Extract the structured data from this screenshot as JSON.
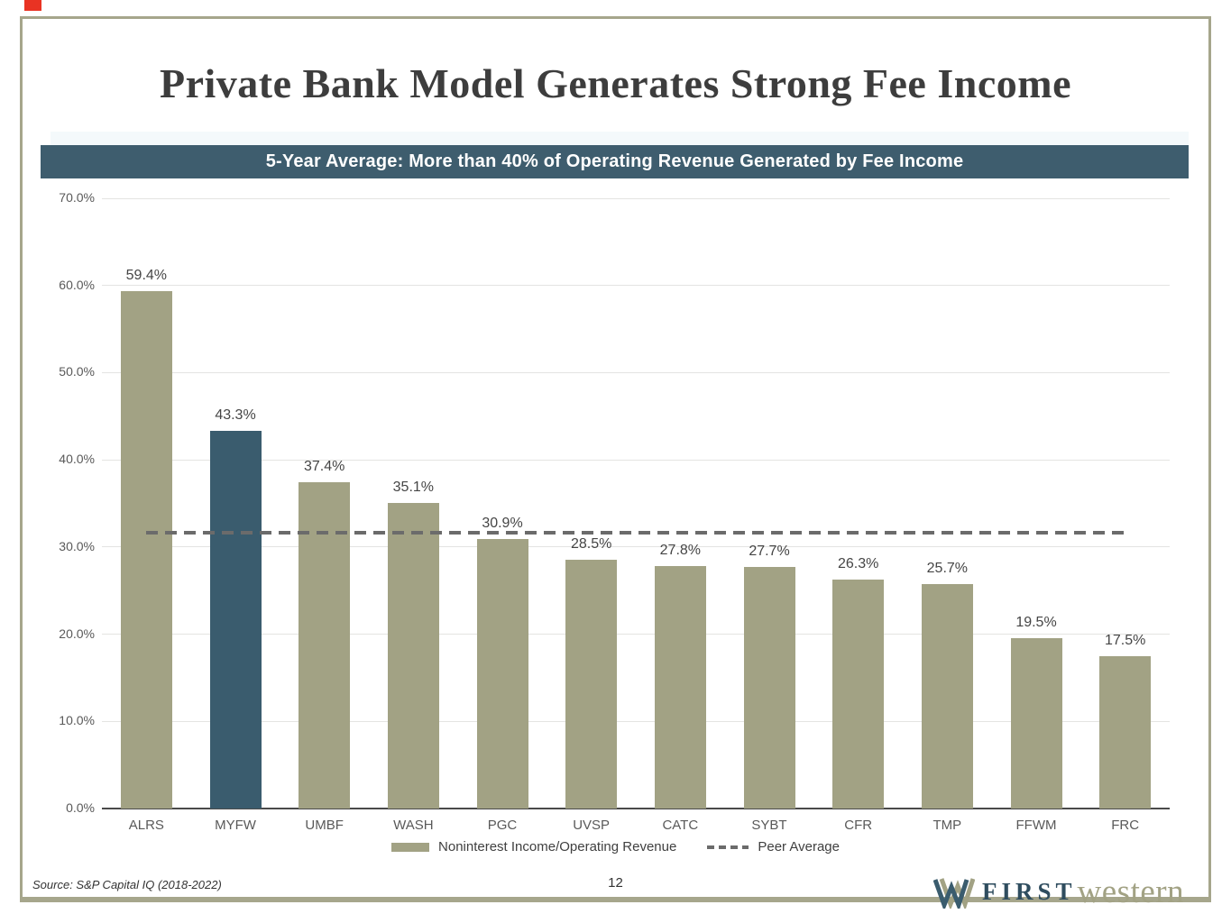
{
  "slide": {
    "title": "Private Bank Model Generates Strong Fee Income",
    "banner": "5-Year Average: More than 40% of Operating Revenue Generated by Fee Income",
    "source": "Source: S&P Capital IQ (2018-2022)",
    "page_number": "12",
    "logo": {
      "first": "FIRST",
      "western": "western"
    }
  },
  "chart_data": {
    "type": "bar",
    "title": "5-Year Average: More than 40% of Operating Revenue Generated by Fee Income",
    "categories": [
      "ALRS",
      "MYFW",
      "UMBF",
      "WASH",
      "PGC",
      "UVSP",
      "CATC",
      "SYBT",
      "CFR",
      "TMP",
      "FFWM",
      "FRC"
    ],
    "values": [
      59.4,
      43.3,
      37.4,
      35.1,
      30.9,
      28.5,
      27.8,
      27.7,
      26.3,
      25.7,
      19.5,
      17.5
    ],
    "value_labels": [
      "59.4%",
      "43.3%",
      "37.4%",
      "35.1%",
      "30.9%",
      "28.5%",
      "27.8%",
      "27.7%",
      "26.3%",
      "25.7%",
      "19.5%",
      "17.5%"
    ],
    "highlight_category": "MYFW",
    "peer_average": 31.6,
    "ylim": [
      0,
      70
    ],
    "ytick_labels": [
      "70.0%",
      "60.0%",
      "50.0%",
      "40.0%",
      "30.0%",
      "20.0%",
      "10.0%",
      "0.0%"
    ],
    "grid": true,
    "legend_position": "bottom",
    "legend": [
      {
        "label": "Noninterest Income/Operating Revenue",
        "swatch": "bar"
      },
      {
        "label": "Peer Average",
        "swatch": "dashed-line"
      }
    ],
    "colors": {
      "bar": "#a2a284",
      "highlight_bar": "#3a5c6e",
      "peer_line": "#6b6b6b",
      "banner_bg": "#3e5d6e",
      "frame_border": "#a6a68c",
      "gridline": "#e4e4e2"
    }
  }
}
